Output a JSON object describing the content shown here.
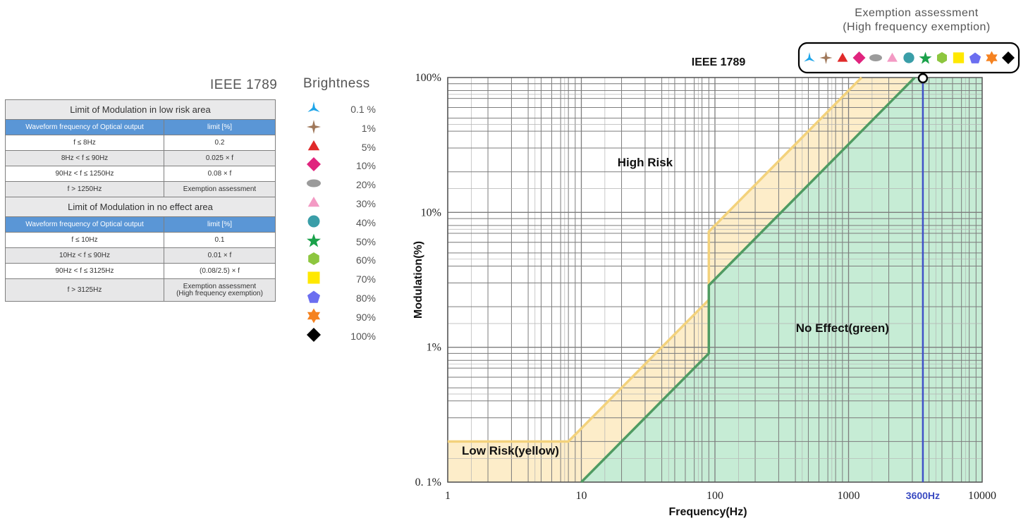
{
  "table": {
    "heading": "IEEE 1789",
    "low_risk_title": "Limit of Modulation in low risk area",
    "no_effect_title": "Limit of Modulation in no effect area",
    "col_frequency": "Waveform frequency of Optical output",
    "col_limit": "limit [%]",
    "low_risk_rows": [
      {
        "freq": "f  ≤ 8Hz",
        "limit": "0.2"
      },
      {
        "freq": "8Hz <  f  ≤ 90Hz",
        "limit": "0.025 × f"
      },
      {
        "freq": "90Hz <  f  ≤ 1250Hz",
        "limit": "0.08 × f"
      },
      {
        "freq": "f  > 1250Hz",
        "limit": "Exemption assessment"
      }
    ],
    "no_effect_rows": [
      {
        "freq": "f  ≤ 10Hz",
        "limit": "0.1"
      },
      {
        "freq": "10Hz < f  ≤ 90Hz",
        "limit": "0.01 × f"
      },
      {
        "freq": "90Hz <  f  ≤ 3125Hz",
        "limit": "(0.08/2.5) ×    f"
      },
      {
        "freq": "f  > 3125Hz",
        "limit": "Exemption assessment",
        "limit2": "(High frequency exemption)"
      }
    ]
  },
  "legend": {
    "title": "Brightness",
    "items": [
      {
        "label": "0.1 %",
        "shape": "tri-star-icon",
        "color": "#1ea5e9"
      },
      {
        "label": "1%",
        "shape": "four-point-star-icon",
        "color": "#a0785a"
      },
      {
        "label": "5%",
        "shape": "triangle-icon",
        "color": "#e02a2a"
      },
      {
        "label": "10%",
        "shape": "diamond-icon",
        "color": "#e0247e"
      },
      {
        "label": "20%",
        "shape": "ellipse-icon",
        "color": "#9b9b9b"
      },
      {
        "label": "30%",
        "shape": "triangle-icon",
        "color": "#f39ac4"
      },
      {
        "label": "40%",
        "shape": "circle-icon",
        "color": "#3a9ea8"
      },
      {
        "label": "50%",
        "shape": "star-icon",
        "color": "#1aa14a"
      },
      {
        "label": "60%",
        "shape": "hexagon-icon",
        "color": "#8dc63f"
      },
      {
        "label": "70%",
        "shape": "square-icon",
        "color": "#ffe800"
      },
      {
        "label": "80%",
        "shape": "pentagon-icon",
        "color": "#6b6ef0"
      },
      {
        "label": "90%",
        "shape": "hexagram-icon",
        "color": "#f58220"
      },
      {
        "label": "100%",
        "shape": "diamond-icon",
        "color": "#000000"
      }
    ]
  },
  "chart_data": {
    "type": "area",
    "title": "IEEE 1789",
    "xlabel": "Frequency(Hz)",
    "ylabel": "Modulation(%)",
    "x_scale": "log",
    "y_scale": "log",
    "xlim": [
      1,
      10000
    ],
    "ylim": [
      0.1,
      100
    ],
    "x_ticks": [
      1,
      10,
      100,
      1000,
      10000
    ],
    "x_tick_labels": [
      "1",
      "10",
      "100",
      "1000",
      "10000"
    ],
    "y_ticks": [
      0.1,
      1,
      10,
      100
    ],
    "y_tick_labels": [
      "0. 1%",
      "1%",
      "10%",
      "100%"
    ],
    "grid": true,
    "series": [
      {
        "name": "Low Risk(yellow)",
        "color": "#f3d27c",
        "fill": "#fdedc9",
        "points": [
          [
            1,
            0.2
          ],
          [
            8,
            0.2
          ],
          [
            90,
            2.25
          ],
          [
            90,
            7.2
          ],
          [
            1250,
            100
          ]
        ]
      },
      {
        "name": "No Effect(green)",
        "color": "#4f9b62",
        "fill": "#c6ecd5",
        "points": [
          [
            10,
            0.1
          ],
          [
            90,
            0.9
          ],
          [
            90,
            2.88
          ],
          [
            3125,
            100
          ]
        ]
      }
    ],
    "annotations": [
      {
        "text": "High Risk",
        "x": 30,
        "y": 22
      },
      {
        "text": "Low Risk(yellow)",
        "x": 4,
        "y": 0.16
      },
      {
        "text": "No Effect(green)",
        "x": 900,
        "y": 1.3
      },
      {
        "text": "3600Hz",
        "x": 3600,
        "color": "#3a4bc2"
      }
    ],
    "exemption": {
      "label": "Exemption assessment",
      "sublabel": "(High frequency exemption)",
      "x": 3600,
      "y": 100
    }
  }
}
